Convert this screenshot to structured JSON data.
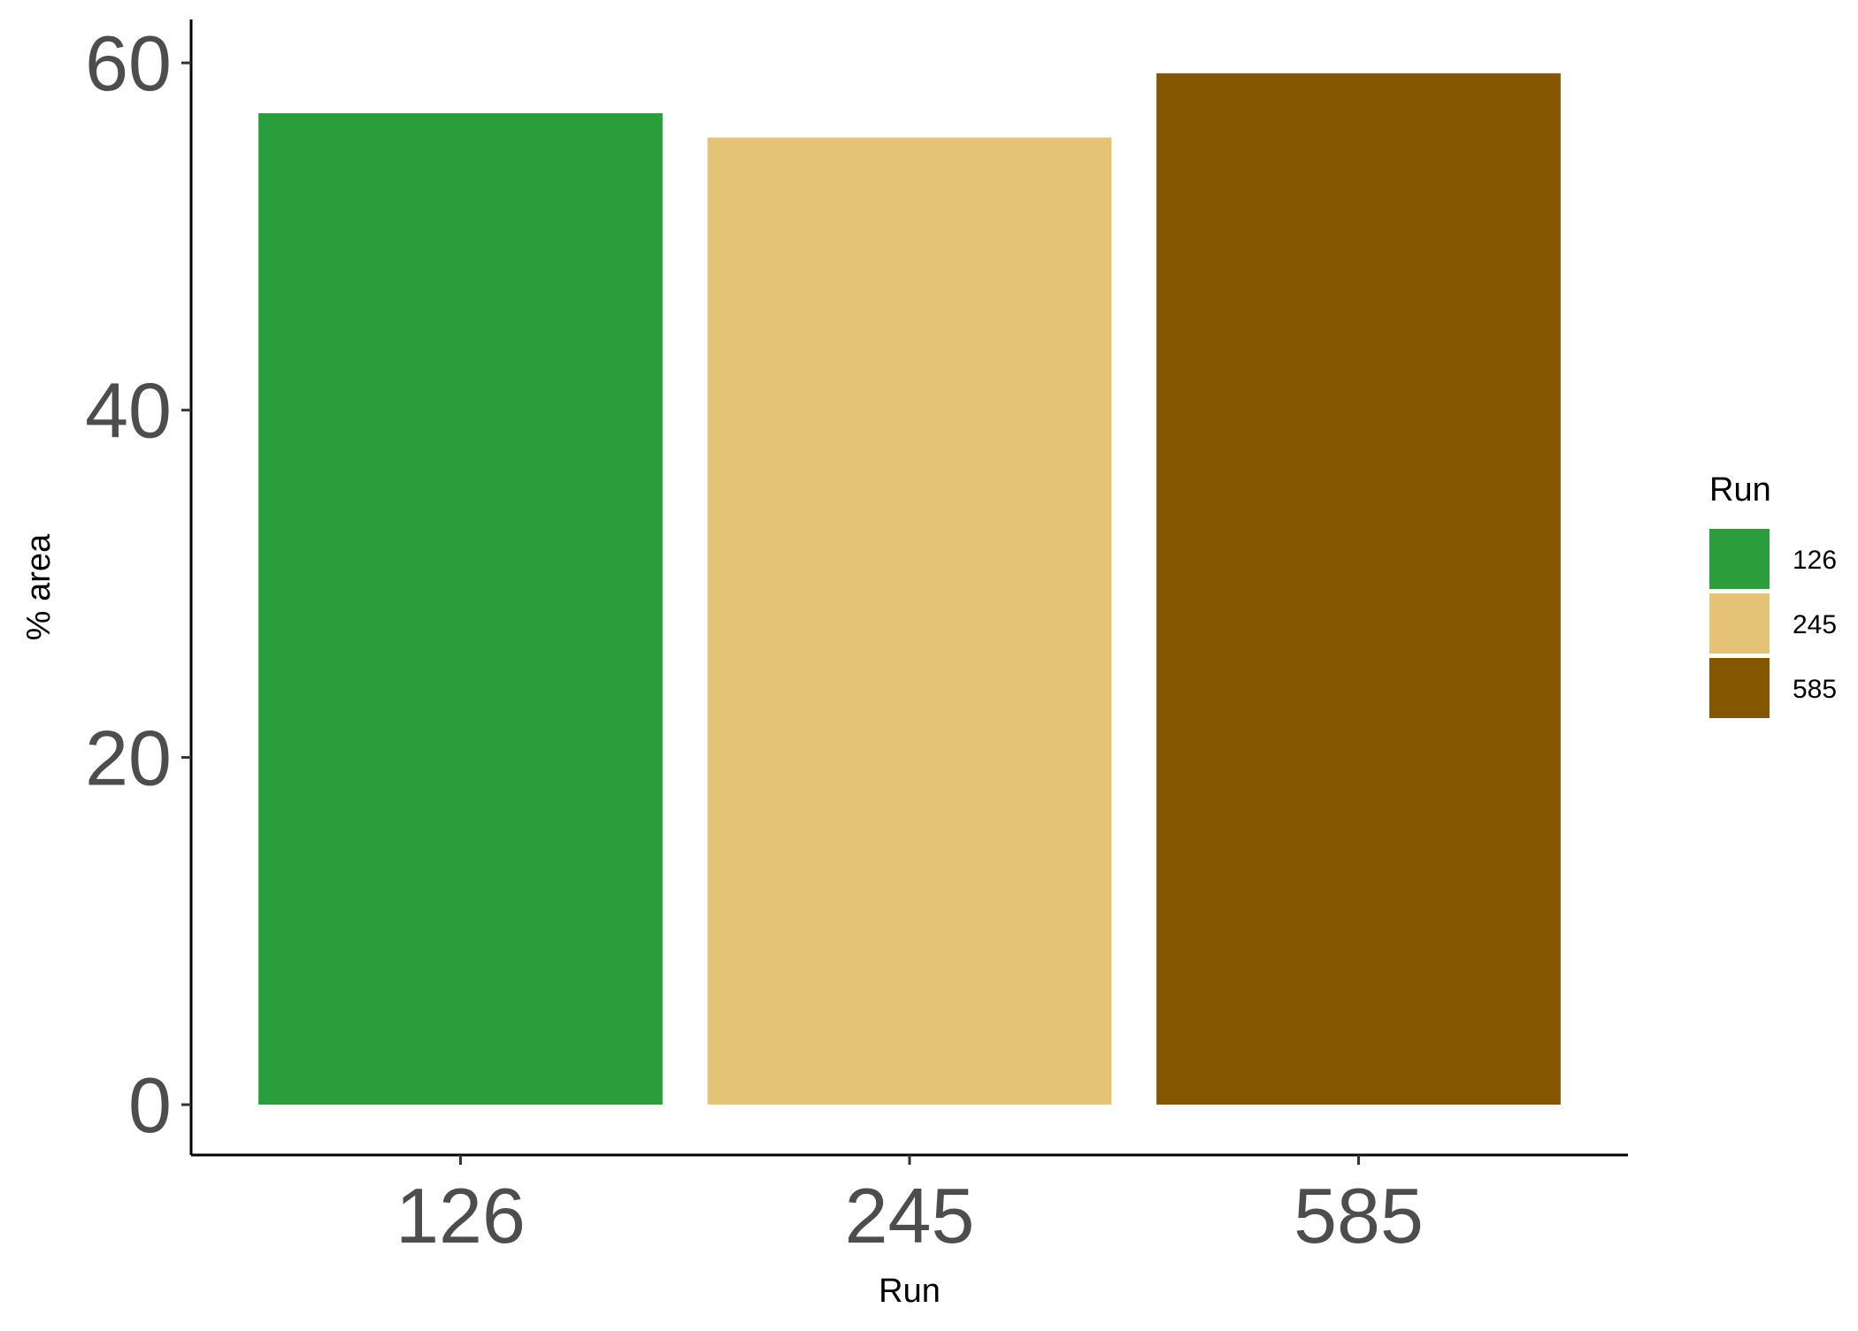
{
  "chart_data": {
    "type": "bar",
    "title": "",
    "xlabel": "Run",
    "ylabel": "% area",
    "categories": [
      "126",
      "245",
      "585"
    ],
    "values": [
      57.1,
      55.7,
      59.4
    ],
    "colors": [
      "#2a9e3c",
      "#e5c376",
      "#845600"
    ],
    "ylim": [
      -2.9,
      62.5
    ],
    "yticks": [
      0,
      20,
      40,
      60
    ],
    "grid": false,
    "legend": {
      "title": "Run",
      "position": "right",
      "entries": [
        "126",
        "245",
        "585"
      ]
    }
  }
}
